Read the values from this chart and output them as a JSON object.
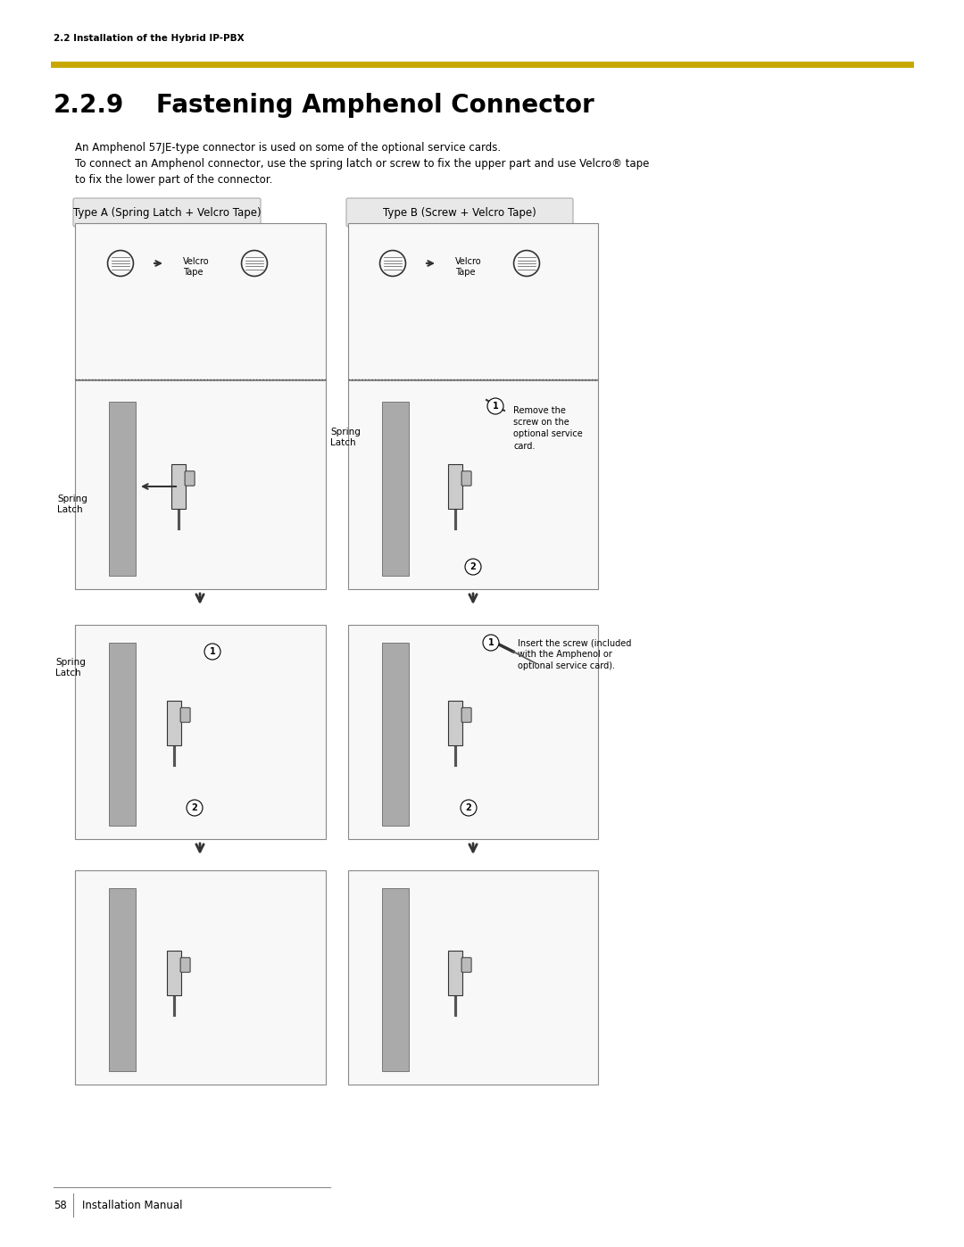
{
  "page_width": 10.8,
  "page_height": 13.97,
  "background_color": "#ffffff",
  "top_label": "2.2 Installation of the Hybrid IP-PBX",
  "gold_line_color": "#C8A800",
  "section_number": "2.2.9",
  "section_title": "Fastening Amphenol Connector",
  "body_text_line1": "An Amphenol 57JE-type connector is used on some of the optional service cards.",
  "body_text_line2": "To connect an Amphenol connector, use the spring latch or screw to fix the upper part and use Velcro® tape",
  "body_text_line3": "to fix the lower part of the connector.",
  "type_a_label": "Type A (Spring Latch + Velcro Tape)",
  "type_b_label": "Type B (Screw + Velcro Tape)",
  "box_fill_color": "#e8e8e8",
  "box_border_color": "#aaaaaa",
  "diagram_border_color": "#888888",
  "diagram_fill_color": "#f0f0f0",
  "footer_page": "58",
  "footer_text": "Installation Manual",
  "footer_line_color": "#888888",
  "label_spring_latch_a": "Spring\nLatch",
  "label_spring_latch_b": "Spring\nLatch",
  "label_velcro_tape_a": "Velcro\nTape",
  "label_velcro_tape_b": "Velcro\nTape",
  "note_b1": "Remove the\nscrew on the\noptional service\ncard.",
  "note_b2": "Insert the screw (included\nwith the Amphenol or\noptional service card).",
  "arrow_color": "#333333",
  "dotted_line_color": "#555555",
  "circle_number_color": "#000000"
}
